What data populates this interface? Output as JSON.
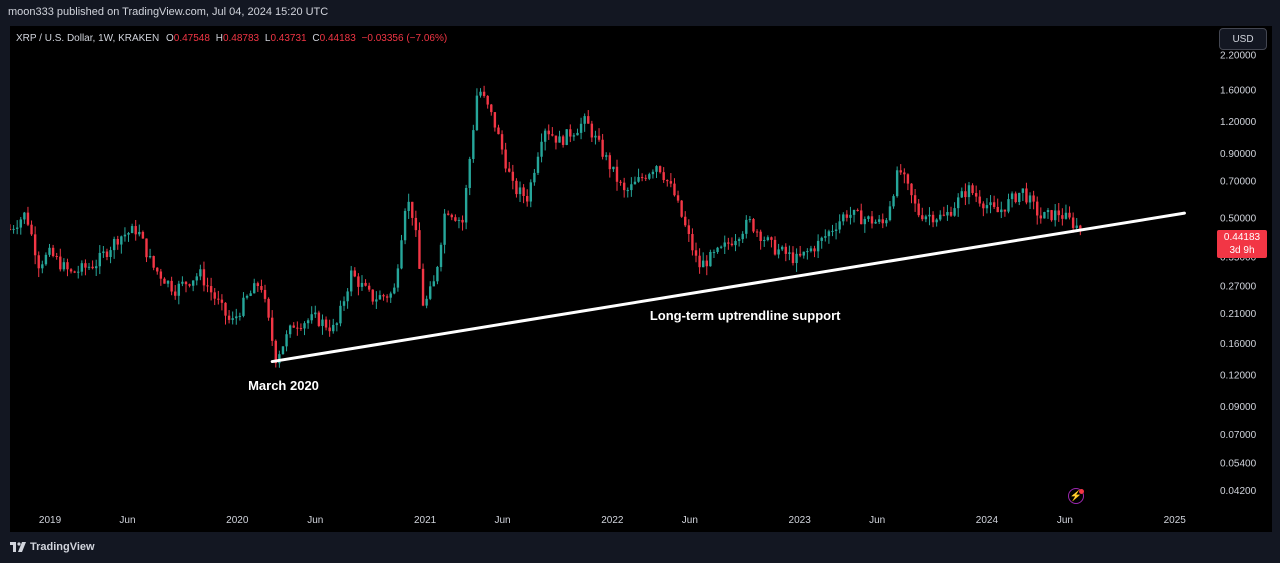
{
  "header": {
    "publisher_text": "moon333 published on TradingView.com, Jul 04, 2024 15:20 UTC"
  },
  "legend": {
    "symbol": "XRP / U.S. Dollar, 1W, KRAKEN",
    "o_label": "O",
    "o_value": "0.47548",
    "h_label": "H",
    "h_value": "0.48783",
    "l_label": "L",
    "l_value": "0.43731",
    "c_label": "C",
    "c_value": "0.44183",
    "change": "−0.03356 (−7.06%)"
  },
  "toolbar": {
    "currency": "USD"
  },
  "price_tag": {
    "price": "0.44183",
    "countdown": "3d 9h"
  },
  "annotations": {
    "trendline_label": "Long-term uptrendline support",
    "march_label": "March 2020"
  },
  "footer": {
    "brand": "TradingView"
  },
  "colors": {
    "up": "#26a69a",
    "down": "#f23645",
    "trendline": "#ffffff",
    "background": "#000000"
  },
  "icons": {
    "bolt": "lightning-icon",
    "logo": "tradingview-logo-icon"
  },
  "chart_data": {
    "type": "candlestick",
    "symbol": "XRP / U.S. Dollar",
    "interval": "1W",
    "exchange": "KRAKEN",
    "y_scale": "log",
    "ylim": [
      0.037,
      2.6
    ],
    "y_ticks": [
      2.2,
      1.6,
      1.2,
      0.9,
      0.7,
      0.5,
      0.35,
      0.27,
      0.21,
      0.16,
      0.12,
      0.09,
      0.07,
      0.054,
      0.042
    ],
    "y_tick_labels": [
      "2.20000",
      "1.60000",
      "1.20000",
      "0.90000",
      "0.70000",
      "0.50000",
      "0.35000",
      "0.27000",
      "0.21000",
      "0.16000",
      "0.12000",
      "0.09000",
      "0.07000",
      "0.05400",
      "0.04200"
    ],
    "x_range": [
      "2018-10-15",
      "2025-03-01"
    ],
    "x_ticks": [
      {
        "date": "2019-01-01",
        "label": "2019"
      },
      {
        "date": "2019-06-01",
        "label": "Jun"
      },
      {
        "date": "2020-01-01",
        "label": "2020"
      },
      {
        "date": "2020-06-01",
        "label": "Jun"
      },
      {
        "date": "2021-01-01",
        "label": "2021"
      },
      {
        "date": "2021-06-01",
        "label": "Jun"
      },
      {
        "date": "2022-01-01",
        "label": "2022"
      },
      {
        "date": "2022-06-01",
        "label": "Jun"
      },
      {
        "date": "2023-01-01",
        "label": "2023"
      },
      {
        "date": "2023-06-01",
        "label": "Jun"
      },
      {
        "date": "2024-01-01",
        "label": "2024"
      },
      {
        "date": "2024-06-01",
        "label": "Jun"
      },
      {
        "date": "2025-01-01",
        "label": "2025"
      }
    ],
    "close_path": [
      [
        "2018-10-15",
        0.45
      ],
      [
        "2018-11-15",
        0.52
      ],
      [
        "2018-12-10",
        0.33
      ],
      [
        "2019-01-01",
        0.36
      ],
      [
        "2019-02-10",
        0.3
      ],
      [
        "2019-04-01",
        0.33
      ],
      [
        "2019-05-15",
        0.42
      ],
      [
        "2019-06-20",
        0.45
      ],
      [
        "2019-07-20",
        0.32
      ],
      [
        "2019-09-01",
        0.26
      ],
      [
        "2019-10-20",
        0.3
      ],
      [
        "2019-12-20",
        0.19
      ],
      [
        "2020-01-20",
        0.24
      ],
      [
        "2020-02-15",
        0.28
      ],
      [
        "2020-03-16",
        0.14
      ],
      [
        "2020-04-20",
        0.19
      ],
      [
        "2020-06-01",
        0.2
      ],
      [
        "2020-07-10",
        0.18
      ],
      [
        "2020-08-10",
        0.3
      ],
      [
        "2020-09-20",
        0.24
      ],
      [
        "2020-11-01",
        0.25
      ],
      [
        "2020-11-25",
        0.6
      ],
      [
        "2020-12-10",
        0.5
      ],
      [
        "2020-12-29",
        0.22
      ],
      [
        "2021-01-20",
        0.28
      ],
      [
        "2021-02-10",
        0.55
      ],
      [
        "2021-03-15",
        0.48
      ],
      [
        "2021-04-14",
        1.65
      ],
      [
        "2021-05-15",
        1.2
      ],
      [
        "2021-06-22",
        0.65
      ],
      [
        "2021-07-20",
        0.6
      ],
      [
        "2021-08-20",
        1.15
      ],
      [
        "2021-09-20",
        1.0
      ],
      [
        "2021-11-10",
        1.2
      ],
      [
        "2021-12-20",
        0.85
      ],
      [
        "2022-01-25",
        0.62
      ],
      [
        "2022-03-30",
        0.82
      ],
      [
        "2022-05-01",
        0.62
      ],
      [
        "2022-06-18",
        0.32
      ],
      [
        "2022-08-01",
        0.37
      ],
      [
        "2022-09-25",
        0.48
      ],
      [
        "2022-11-10",
        0.38
      ],
      [
        "2022-12-28",
        0.34
      ],
      [
        "2023-02-10",
        0.4
      ],
      [
        "2023-04-01",
        0.52
      ],
      [
        "2023-06-15",
        0.47
      ],
      [
        "2023-07-14",
        0.78
      ],
      [
        "2023-08-20",
        0.52
      ],
      [
        "2023-10-10",
        0.5
      ],
      [
        "2023-11-25",
        0.65
      ],
      [
        "2024-01-20",
        0.52
      ],
      [
        "2024-03-10",
        0.64
      ],
      [
        "2024-04-15",
        0.5
      ],
      [
        "2024-05-20",
        0.52
      ],
      [
        "2024-06-20",
        0.47
      ],
      [
        "2024-07-04",
        0.44183
      ]
    ],
    "trendline": {
      "start": [
        "2020-03-09",
        0.135
      ],
      "end": [
        "2025-01-20",
        0.52
      ]
    },
    "annotations": [
      {
        "text": "Long-term uptrendline support",
        "date": "2022-06-01",
        "value": 0.205
      },
      {
        "text": "March 2020",
        "date": "2020-03-01",
        "value": 0.108
      }
    ],
    "last_price": 0.44183,
    "grid": false,
    "legend_position": "top-left"
  }
}
